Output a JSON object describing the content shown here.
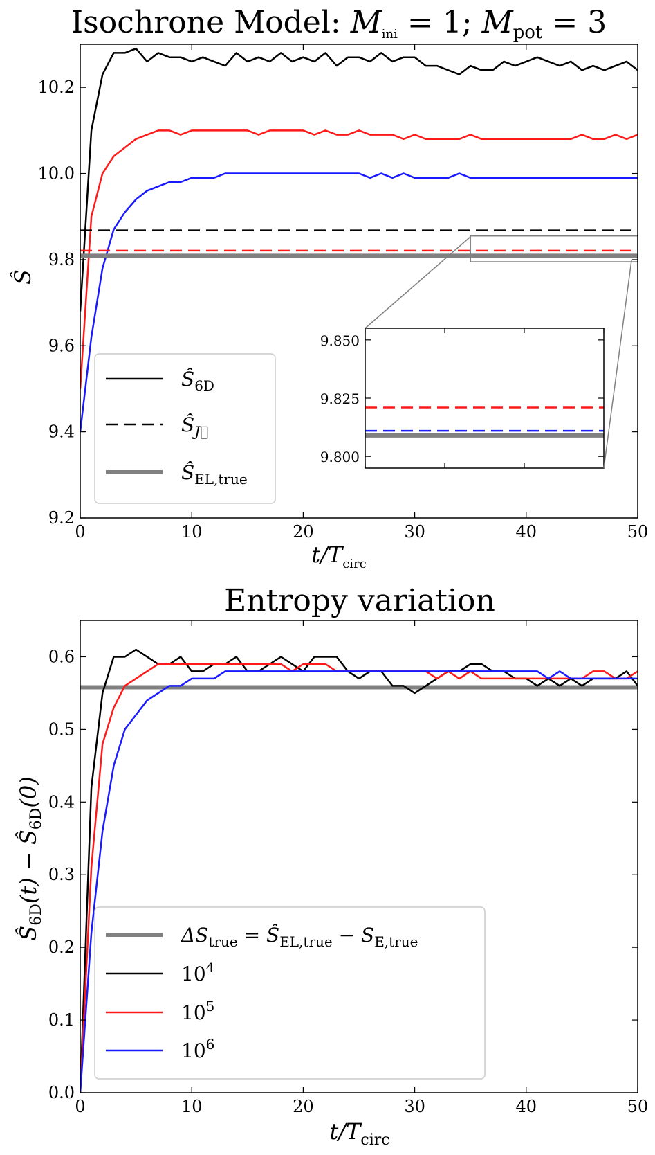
{
  "chart_data": [
    {
      "type": "line",
      "title": "Isochrone Model: M_ini = 1; M_pot = 3",
      "title_parts": {
        "main": "Isochrone Model: ",
        "m": "M",
        "ini": "ini",
        "eq1": " = 1; ",
        "m2": "M",
        "pot": "pot",
        "eq2": " = 3"
      },
      "xlabel": "t/T_circ",
      "xlabel_parts": {
        "t": "t/T",
        "sub": "circ"
      },
      "ylabel": "Ŝ",
      "xlim": [
        0,
        50
      ],
      "ylim": [
        9.2,
        10.3
      ],
      "xticks": [
        "0",
        "10",
        "20",
        "30",
        "40",
        "50"
      ],
      "yticks": [
        "9.2",
        "9.4",
        "9.6",
        "9.8",
        "10.0",
        "10.2"
      ],
      "colors": {
        "black": "#000000",
        "red": "#ff1a1a",
        "blue": "#1a1aff",
        "grey": "#808080"
      },
      "series": [
        {
          "style": "solid",
          "color": "black",
          "values": [
            9.68,
            10.1,
            10.23,
            10.28,
            10.28,
            10.29,
            10.26,
            10.28,
            10.27,
            10.27,
            10.26,
            10.27,
            10.26,
            10.25,
            10.28,
            10.26,
            10.27,
            10.26,
            10.28,
            10.26,
            10.27,
            10.26,
            10.28,
            10.25,
            10.27,
            10.27,
            10.26,
            10.28,
            10.26,
            10.27,
            10.27,
            10.25,
            10.25,
            10.24,
            10.23,
            10.25,
            10.24,
            10.24,
            10.26,
            10.25,
            10.26,
            10.27,
            10.26,
            10.25,
            10.26,
            10.24,
            10.25,
            10.24,
            10.25,
            10.26,
            10.24
          ]
        },
        {
          "style": "solid",
          "color": "red",
          "values": [
            9.5,
            9.9,
            10.0,
            10.04,
            10.06,
            10.08,
            10.09,
            10.1,
            10.1,
            10.09,
            10.1,
            10.1,
            10.1,
            10.1,
            10.1,
            10.1,
            10.09,
            10.1,
            10.1,
            10.1,
            10.1,
            10.09,
            10.1,
            10.09,
            10.09,
            10.1,
            10.09,
            10.09,
            10.09,
            10.08,
            10.09,
            10.08,
            10.08,
            10.08,
            10.08,
            10.09,
            10.08,
            10.08,
            10.08,
            10.08,
            10.08,
            10.08,
            10.08,
            10.08,
            10.08,
            10.09,
            10.08,
            10.08,
            10.09,
            10.08,
            10.09
          ]
        },
        {
          "style": "solid",
          "color": "blue",
          "values": [
            9.4,
            9.62,
            9.78,
            9.87,
            9.91,
            9.94,
            9.96,
            9.97,
            9.98,
            9.98,
            9.99,
            9.99,
            9.99,
            10.0,
            10.0,
            10.0,
            10.0,
            10.0,
            10.0,
            10.0,
            10.0,
            10.0,
            10.0,
            10.0,
            10.0,
            10.0,
            9.99,
            10.0,
            9.99,
            10.0,
            9.99,
            9.99,
            9.99,
            9.99,
            10.0,
            9.99,
            9.99,
            9.99,
            9.99,
            9.99,
            9.99,
            9.99,
            9.99,
            9.99,
            9.99,
            9.99,
            9.99,
            9.99,
            9.99,
            9.99,
            9.99
          ]
        },
        {
          "style": "dashed",
          "color": "black",
          "constant": 9.868
        },
        {
          "style": "dashed",
          "color": "red",
          "constant": 9.821
        },
        {
          "style": "dashed",
          "color": "blue",
          "constant": 9.811
        },
        {
          "style": "thick",
          "color": "grey",
          "constant": 9.809
        }
      ],
      "legend": {
        "placement": "lower-left",
        "entries": [
          {
            "style": "solid",
            "color": "black",
            "base": "Ŝ",
            "sub": "6D"
          },
          {
            "style": "dashed",
            "color": "black",
            "base": "Ŝ",
            "sub": "J⃗"
          },
          {
            "style": "thick",
            "color": "grey",
            "base": "Ŝ",
            "sub": "EL,true"
          }
        ]
      },
      "inset": {
        "placement": "lower-right",
        "xlim": [
          35,
          50
        ],
        "ylim": [
          9.795,
          9.855
        ],
        "yticks": [
          "9.800",
          "9.825",
          "9.850"
        ]
      }
    },
    {
      "type": "line",
      "title": "Entropy variation",
      "xlabel": "t/T_circ",
      "xlabel_parts": {
        "t": "t/T",
        "sub": "circ"
      },
      "ylabel": "Ŝ_6D(t) − Ŝ_6D(0)",
      "ylabel_parts": {
        "a": "Ŝ",
        "a_sub": "6D",
        "b": "(t) − Ŝ",
        "b_sub": "6D",
        "c": "(0)"
      },
      "xlim": [
        0,
        50
      ],
      "ylim": [
        0.0,
        0.65
      ],
      "xticks": [
        "0",
        "10",
        "20",
        "30",
        "40",
        "50"
      ],
      "yticks": [
        "0.0",
        "0.1",
        "0.2",
        "0.3",
        "0.4",
        "0.5",
        "0.6"
      ],
      "series": [
        {
          "style": "thick",
          "color": "grey",
          "constant": 0.558
        },
        {
          "style": "solid",
          "color": "black",
          "values": [
            0.0,
            0.42,
            0.55,
            0.6,
            0.6,
            0.61,
            0.6,
            0.59,
            0.59,
            0.6,
            0.58,
            0.58,
            0.59,
            0.59,
            0.6,
            0.58,
            0.58,
            0.59,
            0.6,
            0.59,
            0.58,
            0.6,
            0.6,
            0.6,
            0.58,
            0.57,
            0.58,
            0.58,
            0.56,
            0.56,
            0.55,
            0.56,
            0.57,
            0.58,
            0.58,
            0.59,
            0.59,
            0.58,
            0.58,
            0.57,
            0.57,
            0.56,
            0.57,
            0.56,
            0.57,
            0.56,
            0.57,
            0.57,
            0.57,
            0.58,
            0.56
          ]
        },
        {
          "style": "solid",
          "color": "red",
          "values": [
            0.0,
            0.31,
            0.48,
            0.53,
            0.56,
            0.57,
            0.58,
            0.59,
            0.59,
            0.59,
            0.59,
            0.59,
            0.59,
            0.59,
            0.59,
            0.59,
            0.59,
            0.59,
            0.59,
            0.58,
            0.59,
            0.59,
            0.59,
            0.58,
            0.58,
            0.58,
            0.58,
            0.58,
            0.58,
            0.58,
            0.58,
            0.58,
            0.57,
            0.58,
            0.57,
            0.58,
            0.57,
            0.57,
            0.57,
            0.57,
            0.57,
            0.57,
            0.57,
            0.57,
            0.57,
            0.57,
            0.58,
            0.58,
            0.57,
            0.57,
            0.58
          ]
        },
        {
          "style": "solid",
          "color": "blue",
          "values": [
            0.0,
            0.22,
            0.36,
            0.45,
            0.5,
            0.52,
            0.54,
            0.55,
            0.56,
            0.56,
            0.57,
            0.57,
            0.57,
            0.58,
            0.58,
            0.58,
            0.58,
            0.58,
            0.58,
            0.58,
            0.58,
            0.58,
            0.58,
            0.58,
            0.58,
            0.58,
            0.58,
            0.58,
            0.58,
            0.58,
            0.58,
            0.58,
            0.58,
            0.58,
            0.58,
            0.58,
            0.58,
            0.58,
            0.58,
            0.58,
            0.58,
            0.58,
            0.57,
            0.58,
            0.57,
            0.57,
            0.57,
            0.57,
            0.57,
            0.57,
            0.57
          ]
        }
      ],
      "legend": {
        "placement": "lower-left",
        "entries": [
          {
            "style": "thick",
            "color": "grey",
            "label": "ΔS_true = Ŝ_EL,true − S_E,true",
            "parts": {
              "a": "ΔS",
              "a_sub": "true",
              "b": " = Ŝ",
              "b_sub": "EL,true",
              "c": " − S",
              "c_sub": "E,true"
            }
          },
          {
            "style": "solid",
            "color": "black",
            "base": "10",
            "sup": "4"
          },
          {
            "style": "solid",
            "color": "red",
            "base": "10",
            "sup": "5"
          },
          {
            "style": "solid",
            "color": "blue",
            "base": "10",
            "sup": "6"
          }
        ]
      }
    }
  ]
}
